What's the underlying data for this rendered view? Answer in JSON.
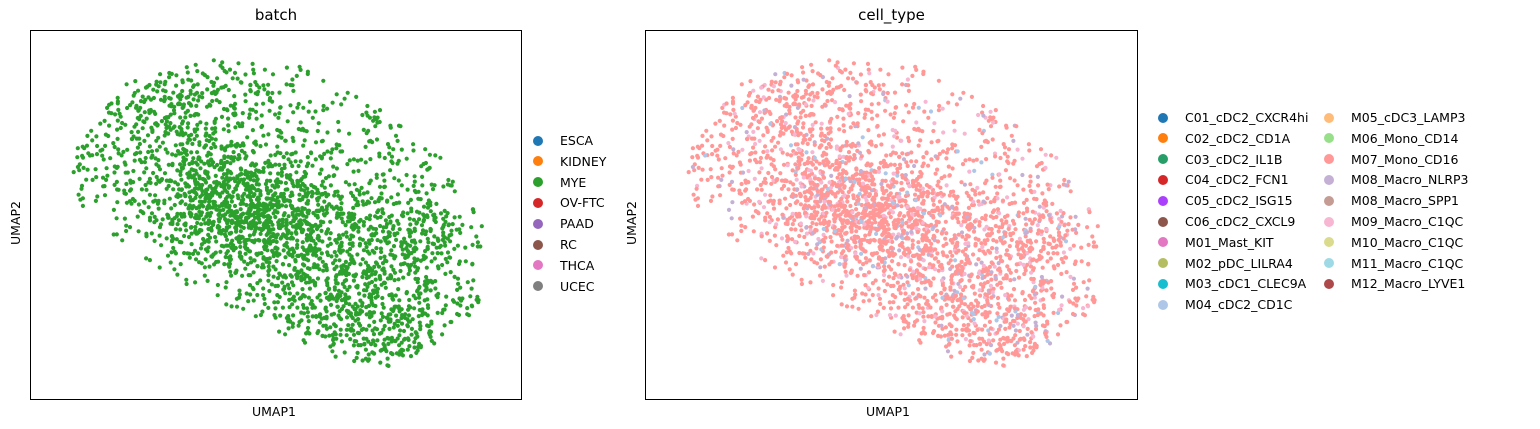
{
  "chart_data": [
    {
      "type": "scatter",
      "title": "batch",
      "xlabel": "UMAP1",
      "ylabel": "UMAP2",
      "legend": {
        "placement": "right",
        "entries": [
          {
            "label": "ESCA",
            "color": "#1f77b4"
          },
          {
            "label": "KIDNEY",
            "color": "#ff7f0e"
          },
          {
            "label": "MYE",
            "color": "#2ca02c"
          },
          {
            "label": "OV-FTC",
            "color": "#d62728"
          },
          {
            "label": "PAAD",
            "color": "#9467bd"
          },
          {
            "label": "RC",
            "color": "#8c564b"
          },
          {
            "label": "THCA",
            "color": "#e377c2"
          },
          {
            "label": "UCEC",
            "color": "#7f7f7f"
          }
        ]
      },
      "point_color": "#2ca02c",
      "grid": false,
      "ticks": false
    },
    {
      "type": "scatter",
      "title": "cell_type",
      "xlabel": "UMAP1",
      "ylabel": "UMAP2",
      "legend": {
        "placement": "right",
        "columns": 2,
        "entries": [
          {
            "label": "C01_cDC2_CXCR4hi",
            "color": "#1f77b4"
          },
          {
            "label": "C02_cDC2_CD1A",
            "color": "#ff7f0e"
          },
          {
            "label": "C03_cDC2_IL1B",
            "color": "#279e68"
          },
          {
            "label": "C04_cDC2_FCN1",
            "color": "#d62728"
          },
          {
            "label": "C05_cDC2_ISG15",
            "color": "#aa40fc"
          },
          {
            "label": "C06_cDC2_CXCL9",
            "color": "#8c564b"
          },
          {
            "label": "M01_Mast_KIT",
            "color": "#e377c2"
          },
          {
            "label": "M02_pDC_LILRA4",
            "color": "#b5bd61"
          },
          {
            "label": "M03_cDC1_CLEC9A",
            "color": "#17becf"
          },
          {
            "label": "M04_cDC2_CD1C",
            "color": "#aec7e8"
          },
          {
            "label": "M05_cDC3_LAMP3",
            "color": "#ffbb78"
          },
          {
            "label": "M06_Mono_CD14",
            "color": "#98df8a"
          },
          {
            "label": "M07_Mono_CD16",
            "color": "#ff9896"
          },
          {
            "label": "M08_Macro_NLRP3",
            "color": "#c5b0d5"
          },
          {
            "label": "M08_Macro_SPP1",
            "color": "#c49c94"
          },
          {
            "label": "M09_Macro_C1QC",
            "color": "#f7b6d2"
          },
          {
            "label": "M10_Macro_C1QC",
            "color": "#dbdb8d"
          },
          {
            "label": "M11_Macro_C1QC",
            "color": "#9edae5"
          },
          {
            "label": "M12_Macro_LYVE1",
            "color": "#ad494a"
          }
        ]
      },
      "dominant_color": "#ff9896",
      "secondary_colors": [
        "#f7b6d2",
        "#c5b0d5",
        "#aec7e8"
      ],
      "grid": false,
      "ticks": false
    }
  ]
}
